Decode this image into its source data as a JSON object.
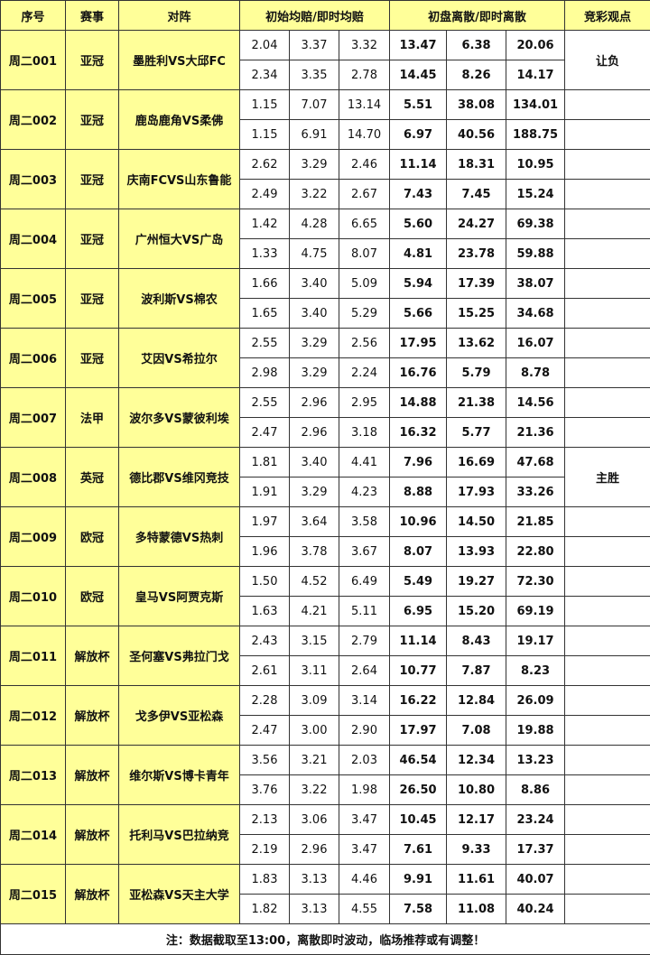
{
  "headers": [
    "序号",
    "赛事",
    "对阵",
    "初始均赔/即时均赔",
    "初盘离散/即时离散",
    "竞彩观点"
  ],
  "matches": [
    {
      "id": "周二001",
      "league": "亚冠",
      "teams": "墨胜利VS大邱FC",
      "rows": [
        [
          "2.04",
          "3.37",
          "3.32",
          "13.47",
          "6.38",
          "20.06"
        ],
        [
          "2.34",
          "3.35",
          "2.78",
          "14.45",
          "8.26",
          "14.17"
        ]
      ],
      "view": "让负"
    },
    {
      "id": "周二002",
      "league": "亚冠",
      "teams": "鹿岛鹿角VS柔佛",
      "rows": [
        [
          "1.15",
          "7.07",
          "13.14",
          "5.51",
          "38.08",
          "134.01"
        ],
        [
          "1.15",
          "6.91",
          "14.70",
          "6.97",
          "40.56",
          "188.75"
        ]
      ],
      "view": ""
    },
    {
      "id": "周二003",
      "league": "亚冠",
      "teams": "庆南FCVS山东鲁能",
      "rows": [
        [
          "2.62",
          "3.29",
          "2.46",
          "11.14",
          "18.31",
          "10.95"
        ],
        [
          "2.49",
          "3.22",
          "2.67",
          "7.43",
          "7.45",
          "15.24"
        ]
      ],
      "view": ""
    },
    {
      "id": "周二004",
      "league": "亚冠",
      "teams": "广州恒大VS广岛",
      "rows": [
        [
          "1.42",
          "4.28",
          "6.65",
          "5.60",
          "24.27",
          "69.38"
        ],
        [
          "1.33",
          "4.75",
          "8.07",
          "4.81",
          "23.78",
          "59.88"
        ]
      ],
      "view": ""
    },
    {
      "id": "周二005",
      "league": "亚冠",
      "teams": "波利斯VS棉农",
      "rows": [
        [
          "1.66",
          "3.40",
          "5.09",
          "5.94",
          "17.39",
          "38.07"
        ],
        [
          "1.65",
          "3.40",
          "5.29",
          "5.66",
          "15.25",
          "34.68"
        ]
      ],
      "view": ""
    },
    {
      "id": "周二006",
      "league": "亚冠",
      "teams": "艾因VS希拉尔",
      "rows": [
        [
          "2.55",
          "3.29",
          "2.56",
          "17.95",
          "13.62",
          "16.07"
        ],
        [
          "2.98",
          "3.29",
          "2.24",
          "16.76",
          "5.79",
          "8.78"
        ]
      ],
      "view": ""
    },
    {
      "id": "周二007",
      "league": "法甲",
      "teams": "波尔多VS蒙彼利埃",
      "rows": [
        [
          "2.55",
          "2.96",
          "2.95",
          "14.88",
          "21.38",
          "14.56"
        ],
        [
          "2.47",
          "2.96",
          "3.18",
          "16.32",
          "5.77",
          "21.36"
        ]
      ],
      "view": ""
    },
    {
      "id": "周二008",
      "league": "英冠",
      "teams": "德比郡VS维冈竞技",
      "rows": [
        [
          "1.81",
          "3.40",
          "4.41",
          "7.96",
          "16.69",
          "47.68"
        ],
        [
          "1.91",
          "3.29",
          "4.23",
          "8.88",
          "17.93",
          "33.26"
        ]
      ],
      "view": "主胜"
    },
    {
      "id": "周二009",
      "league": "欧冠",
      "teams": "多特蒙德VS热刺",
      "rows": [
        [
          "1.97",
          "3.64",
          "3.58",
          "10.96",
          "14.50",
          "21.85"
        ],
        [
          "1.96",
          "3.78",
          "3.67",
          "8.07",
          "13.93",
          "22.80"
        ]
      ],
      "view": ""
    },
    {
      "id": "周二010",
      "league": "欧冠",
      "teams": "皇马VS阿贾克斯",
      "rows": [
        [
          "1.50",
          "4.52",
          "6.49",
          "5.49",
          "19.27",
          "72.30"
        ],
        [
          "1.63",
          "4.21",
          "5.11",
          "6.95",
          "15.20",
          "69.19"
        ]
      ],
      "view": ""
    },
    {
      "id": "周二011",
      "league": "解放杯",
      "teams": "圣何塞VS弗拉门戈",
      "rows": [
        [
          "2.43",
          "3.15",
          "2.79",
          "11.14",
          "8.43",
          "19.17"
        ],
        [
          "2.61",
          "3.11",
          "2.64",
          "10.77",
          "7.87",
          "8.23"
        ]
      ],
      "view": ""
    },
    {
      "id": "周二012",
      "league": "解放杯",
      "teams": "戈多伊VS亚松森",
      "rows": [
        [
          "2.28",
          "3.09",
          "3.14",
          "16.22",
          "12.84",
          "26.09"
        ],
        [
          "2.47",
          "3.00",
          "2.90",
          "17.97",
          "7.08",
          "19.88"
        ]
      ],
      "view": ""
    },
    {
      "id": "周二013",
      "league": "解放杯",
      "teams": "维尔斯VS博卡青年",
      "rows": [
        [
          "3.56",
          "3.21",
          "2.03",
          "46.54",
          "12.34",
          "13.23"
        ],
        [
          "3.76",
          "3.22",
          "1.98",
          "26.50",
          "10.80",
          "8.86"
        ]
      ],
      "view": ""
    },
    {
      "id": "周二014",
      "league": "解放杯",
      "teams": "托利马VS巴拉纳竞",
      "rows": [
        [
          "2.13",
          "3.06",
          "3.47",
          "10.45",
          "12.17",
          "23.24"
        ],
        [
          "2.19",
          "2.96",
          "3.47",
          "7.61",
          "9.33",
          "17.37"
        ]
      ],
      "view": ""
    },
    {
      "id": "周二015",
      "league": "解放杯",
      "teams": "亚松森VS天主大学",
      "rows": [
        [
          "1.83",
          "3.13",
          "4.46",
          "9.91",
          "11.61",
          "40.07"
        ],
        [
          "1.82",
          "3.13",
          "4.55",
          "7.58",
          "11.08",
          "40.24"
        ]
      ],
      "view": ""
    }
  ],
  "footer": "注：数据截取至13:00，离散即时波动，临场推荐或有调整！",
  "colors": {
    "highlight": "#FFFF99",
    "border": "#333333"
  }
}
